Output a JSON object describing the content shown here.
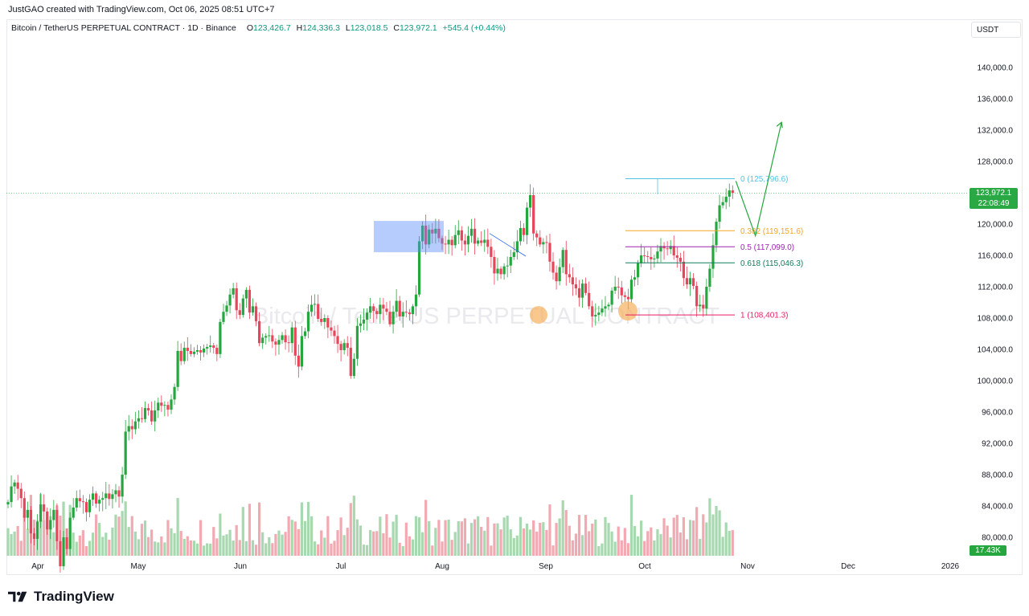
{
  "header": {
    "created_by": "JustGAO created with TradingView.com, Oct 06, 2025 08:51 UTC+7",
    "symbol": "Bitcoin / TetherUS PERPETUAL CONTRACT · 1D · Binance",
    "o_label": "O",
    "o_value": "123,426.7",
    "h_label": "H",
    "h_value": "124,336.3",
    "l_label": "L",
    "l_value": "123,018.5",
    "c_label": "C",
    "c_value": "123,972.1",
    "change": "+545.4 (+0.44%)",
    "currency": "USDT"
  },
  "watermark": "Bitcoin / TetherUS PERPETUAL CONTRACT",
  "price_tag": {
    "price": "123,972.1",
    "countdown": "22:08:49"
  },
  "volume_tag": "17.43K",
  "brand": "TradingView",
  "colors": {
    "up": "#26a63f",
    "down": "#e8445a",
    "up_vol": "#a8d8b0",
    "down_vol": "#f2a9b1",
    "fib0": "#52c5e6",
    "fib382": "#f5a623",
    "fib5": "#9c27b0",
    "fib618": "#0f7f5e",
    "fib1": "#e91e63",
    "box": "#5b8ff9",
    "arrow": "#26a63f",
    "circle": "#f5b060"
  },
  "chart_data": {
    "type": "candlestick",
    "ylim": [
      78000,
      142000
    ],
    "y_ticks": [
      "140,000.0",
      "136,000.0",
      "132,000.0",
      "128,000.0",
      "124,000.0",
      "120,000.0",
      "116,000.0",
      "112,000.0",
      "108,000.0",
      "104,000.0",
      "100,000.0",
      "96,000.0",
      "92,000.0",
      "88,000.0",
      "84,000.0",
      "80,000.0"
    ],
    "x_ticks": [
      "Apr",
      "May",
      "Jun",
      "Jul",
      "Aug",
      "Sep",
      "Oct",
      "Nov",
      "Dec",
      "2026"
    ],
    "fib_levels": [
      {
        "label": "0 (125,796.6)",
        "price": 125796.6
      },
      {
        "label": "0.382 (119,151.6)",
        "price": 119151.6
      },
      {
        "label": "0.5 (117,099.0)",
        "price": 117099.0
      },
      {
        "label": "0.618 (115,046.3)",
        "price": 115046.3
      },
      {
        "label": "1 (108,401.3)",
        "price": 108401.3
      }
    ],
    "last_price": 123972.1,
    "closes": [
      84500,
      86500,
      87000,
      86200,
      85000,
      82500,
      83500,
      80500,
      79800,
      82000,
      84200,
      83300,
      81000,
      82200,
      83500,
      79500,
      76300,
      80000,
      78500,
      82500,
      83800,
      85000,
      84600,
      84500,
      83200,
      84800,
      85600,
      84300,
      84800,
      85000,
      85600,
      84900,
      85500,
      86000,
      85200,
      88000,
      93500,
      94200,
      93800,
      94800,
      95200,
      95100,
      96500,
      96200,
      94800,
      96200,
      97200,
      96800,
      96900,
      96300,
      97600,
      99200,
      103800,
      102500,
      104200,
      103800,
      103400,
      103700,
      103900,
      103600,
      104100,
      104300,
      104500,
      104200,
      103400,
      107500,
      108800,
      109600,
      111000,
      111800,
      109000,
      108400,
      110500,
      111600,
      108700,
      109500,
      107600,
      104800,
      105500,
      105700,
      105800,
      105000,
      104600,
      105200,
      105800,
      104900,
      104800,
      106800,
      103200,
      101800,
      105700,
      106300,
      108800,
      109700,
      109800,
      107900,
      107500,
      108000,
      106800,
      106400,
      105700,
      104700,
      103900,
      104800,
      104200,
      100600,
      102800,
      107000,
      107300,
      107800,
      108700,
      109500,
      108900,
      108500,
      109700,
      109200,
      108800,
      107200,
      108800,
      110200,
      108200,
      108800,
      108700,
      108500,
      109500,
      111000,
      117800,
      119800,
      117400,
      119300,
      118800,
      119400,
      118200,
      117500,
      117400,
      118000,
      117300,
      118600,
      119200,
      117900,
      117400,
      118500,
      119400,
      117500,
      117900,
      117600,
      118000,
      117100,
      115800,
      113700,
      114300,
      113600,
      114600,
      114700,
      115800,
      116400,
      117800,
      119500,
      118600,
      122100,
      123700,
      118800,
      118300,
      117400,
      117700,
      117600,
      115200,
      113800,
      112700,
      114500,
      116700,
      113600,
      113200,
      112300,
      111800,
      110600,
      112400,
      111200,
      109500,
      108200,
      108400,
      108700,
      109200,
      109500,
      109700,
      111500,
      112000,
      111900,
      110900,
      110700,
      110400,
      112900,
      113200,
      115000,
      116000,
      115900,
      115800,
      115500,
      115600,
      116500,
      117200,
      116900,
      116800,
      117200,
      116000,
      115700,
      115200,
      113100,
      112300,
      113100,
      112100,
      109500,
      109700,
      109200,
      112000,
      114300,
      117300,
      120300,
      122400,
      122800,
      123500,
      124300,
      123972
    ],
    "projection": [
      {
        "days": 0,
        "price": 125500
      },
      {
        "days": 6,
        "price": 118500
      },
      {
        "days": 14,
        "price": 133000
      }
    ]
  }
}
